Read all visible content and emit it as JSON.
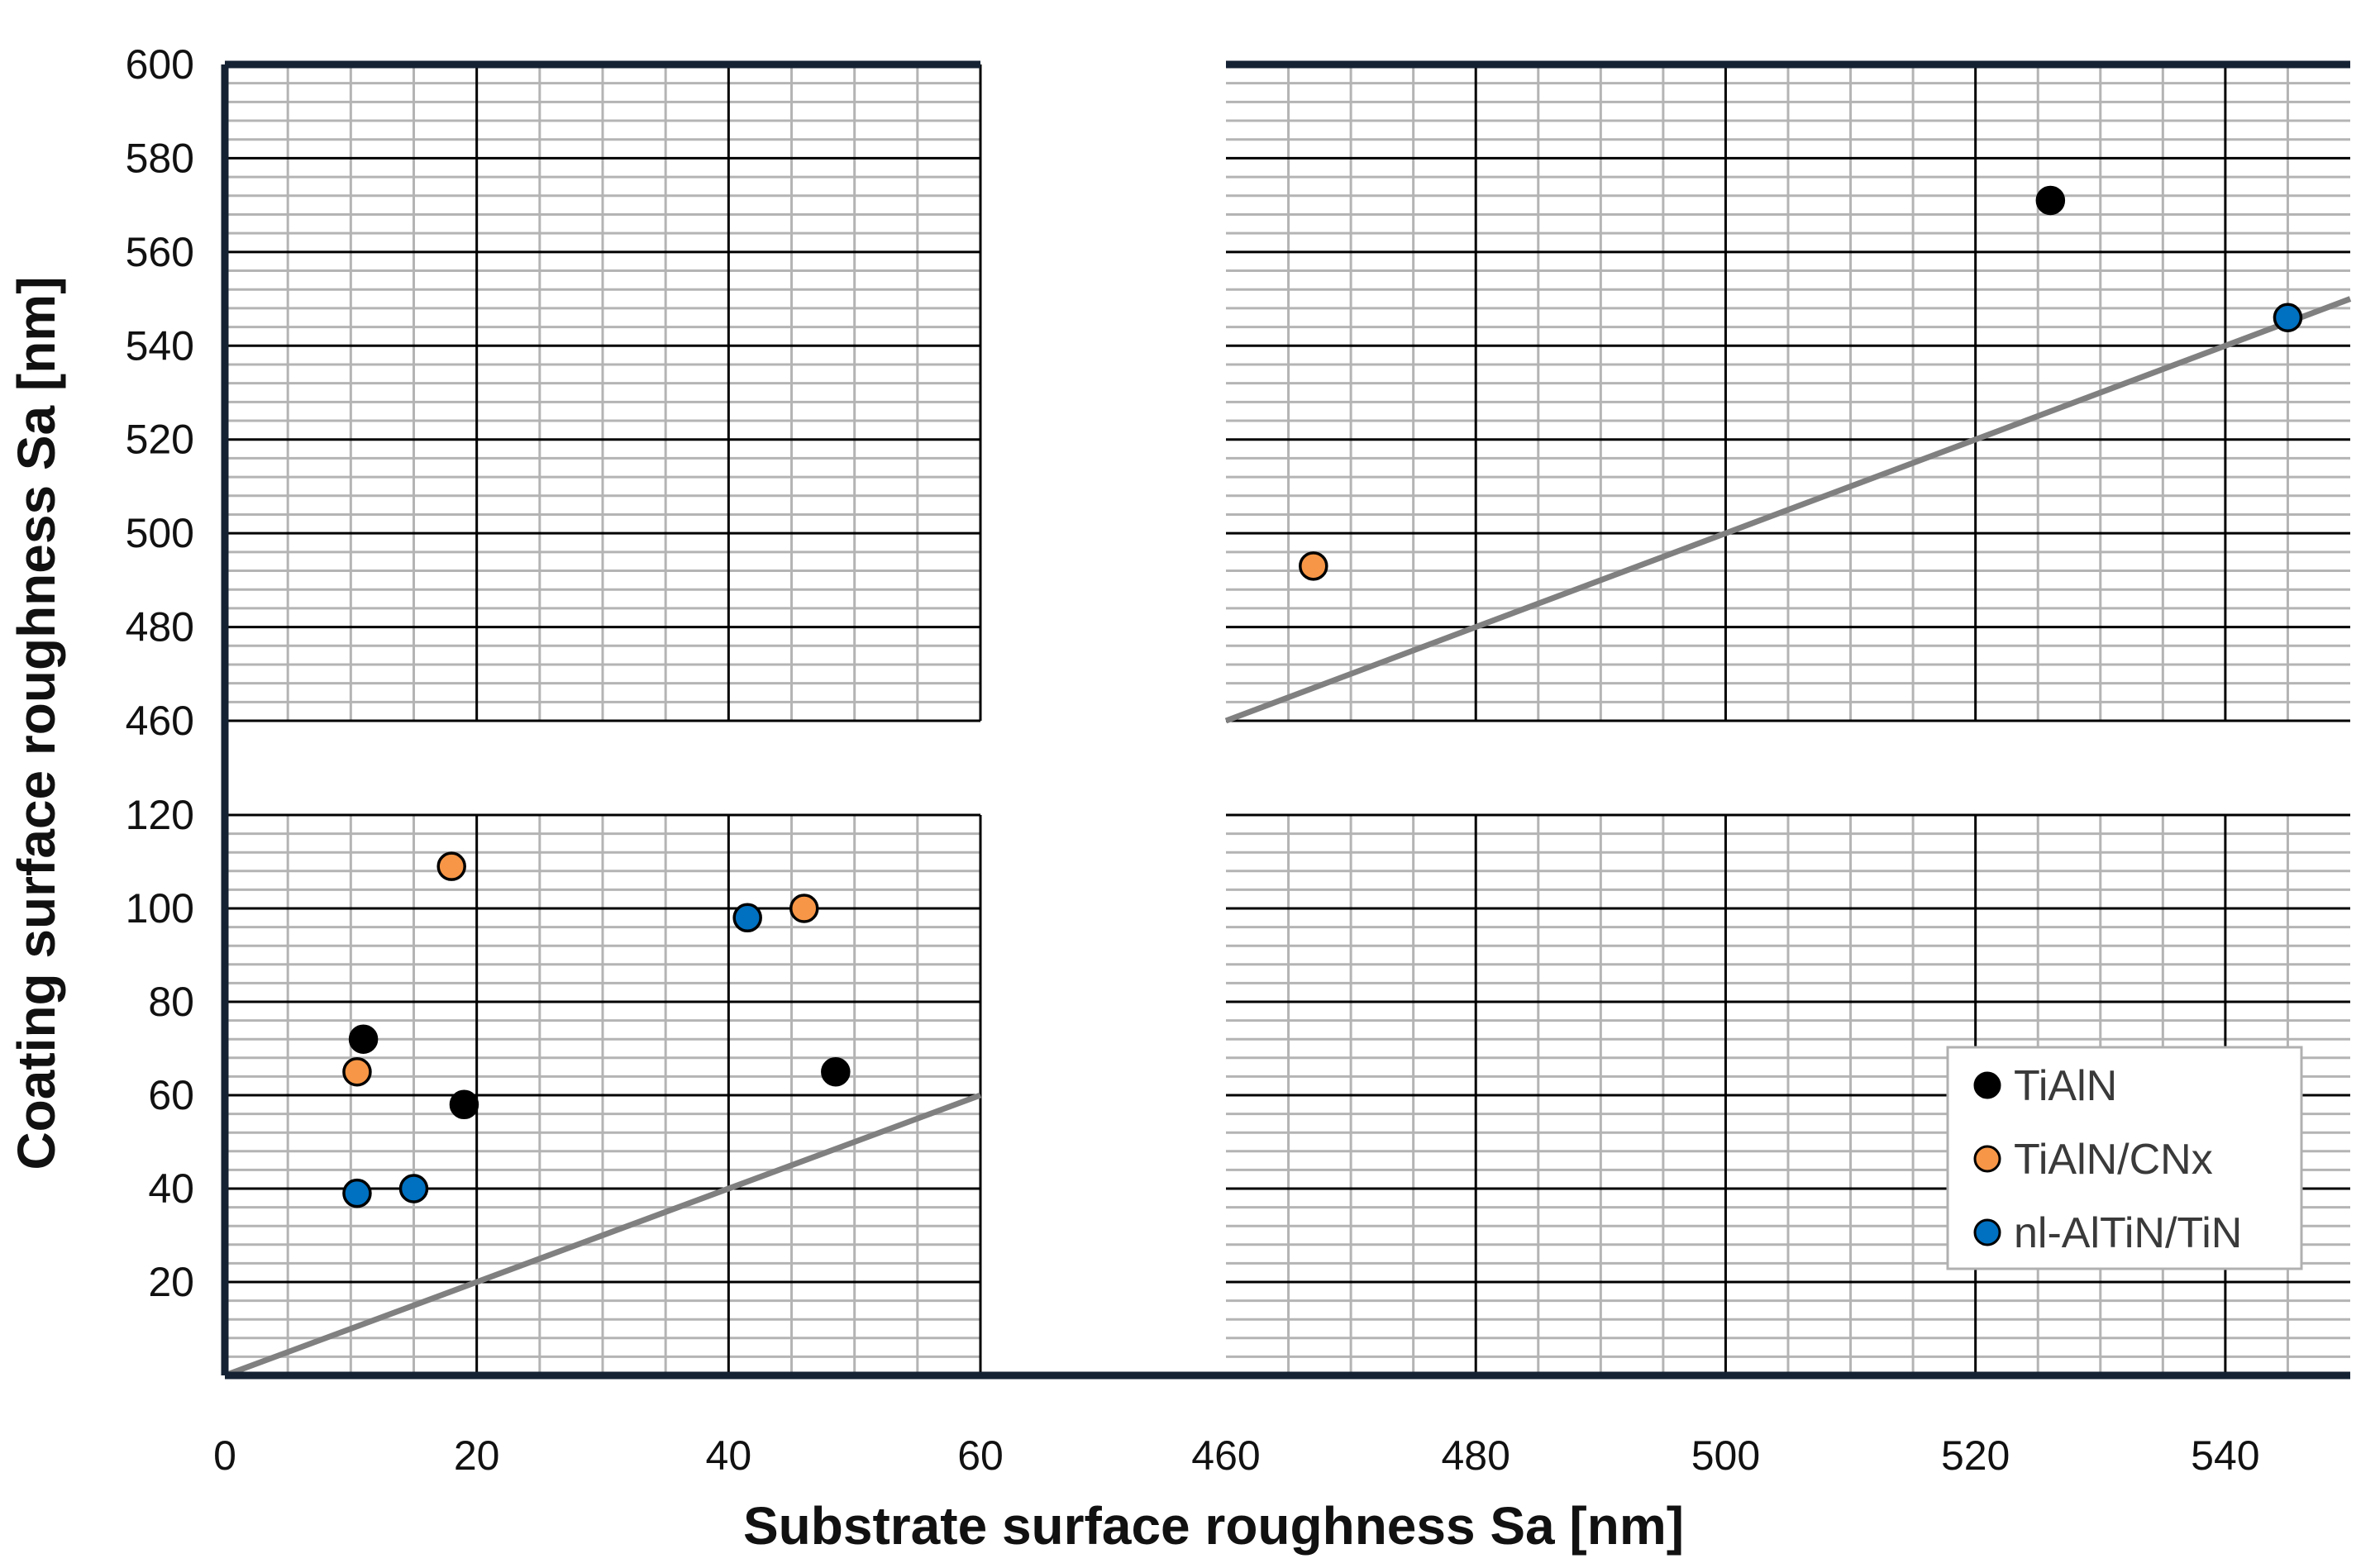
{
  "chart_data": {
    "type": "scatter",
    "title": "",
    "xlabel": "Substrate surface roughness Sa [nm]",
    "ylabel": "Coating surface roughness Sa [nm]",
    "broken_axes": true,
    "x_segments": [
      {
        "range": [
          0,
          60
        ],
        "ticks": [
          0,
          20,
          40,
          60
        ]
      },
      {
        "range": [
          460,
          550
        ],
        "ticks": [
          460,
          480,
          500,
          520,
          540
        ]
      }
    ],
    "y_segments": [
      {
        "range": [
          0,
          120
        ],
        "ticks": [
          20,
          40,
          60,
          80,
          100,
          120
        ]
      },
      {
        "range": [
          460,
          600
        ],
        "ticks": [
          460,
          480,
          500,
          520,
          540,
          560,
          580,
          600
        ]
      }
    ],
    "legend_position": "bottom-right",
    "series": [
      {
        "name": "TiAlN",
        "color": "#000000",
        "points": [
          [
            11,
            72
          ],
          [
            19,
            58
          ],
          [
            48.5,
            65
          ],
          [
            526,
            571
          ]
        ]
      },
      {
        "name": "TiAlN/CNx",
        "color": "#F79646",
        "points": [
          [
            10.5,
            65
          ],
          [
            18,
            109
          ],
          [
            46,
            100
          ],
          [
            467,
            493
          ]
        ]
      },
      {
        "name": "nl-AlTiN/TiN",
        "color": "#0070C0",
        "points": [
          [
            10.5,
            39
          ],
          [
            15,
            40
          ],
          [
            41.5,
            98
          ],
          [
            545,
            546
          ]
        ]
      }
    ],
    "reference_line": {
      "name": "y = x",
      "color": "#808080",
      "points": [
        [
          0,
          0
        ],
        [
          550,
          550
        ]
      ]
    }
  }
}
